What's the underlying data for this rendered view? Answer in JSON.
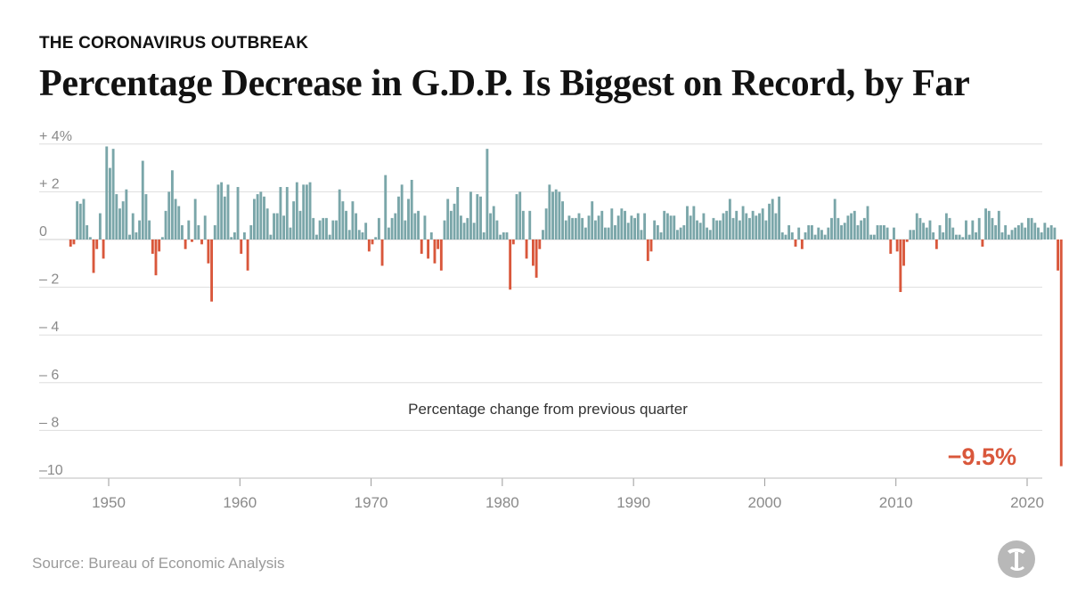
{
  "kicker": "THE CORONAVIRUS OUTBREAK",
  "title": "Percentage Decrease in G.D.P. Is Biggest on Record, by Far",
  "source": "Source: Bureau of Economic Analysis",
  "colors": {
    "positive": "#7aa6a9",
    "negative": "#d9573b",
    "grid": "#dddddd",
    "axis_text": "#8a8a8a",
    "zero_line": "#cfcfcf"
  },
  "chart_data": {
    "type": "bar",
    "title": "Percentage Decrease in G.D.P. Is Biggest on Record, by Far",
    "annotation": "Percentage change from previous quarter",
    "callout": "−9.5%",
    "ylim": [
      -10,
      4
    ],
    "y_ticks": [
      {
        "value": 4,
        "label": "+ 4%"
      },
      {
        "value": 2,
        "label": "+ 2"
      },
      {
        "value": 0,
        "label": "0"
      },
      {
        "value": -2,
        "label": "– 2"
      },
      {
        "value": -4,
        "label": "– 4"
      },
      {
        "value": -6,
        "label": "– 6"
      },
      {
        "value": -8,
        "label": "– 8"
      },
      {
        "value": -10,
        "label": "–10"
      }
    ],
    "x_ticks": [
      {
        "year": 1950,
        "label": "1950"
      },
      {
        "year": 1960,
        "label": "1960"
      },
      {
        "year": 1970,
        "label": "1970"
      },
      {
        "year": 1980,
        "label": "1980"
      },
      {
        "year": 1990,
        "label": "1990"
      },
      {
        "year": 2000,
        "label": "2000"
      },
      {
        "year": 2010,
        "label": "2010"
      },
      {
        "year": 2020,
        "label": "2020"
      }
    ],
    "start_year": 1947,
    "quarters_per_year": 4,
    "values": [
      -0.3,
      -0.2,
      1.6,
      1.5,
      1.7,
      0.6,
      0.1,
      -1.4,
      -0.4,
      1.1,
      -0.8,
      3.9,
      3.0,
      3.8,
      1.9,
      1.3,
      1.6,
      2.1,
      0.2,
      1.1,
      0.3,
      0.8,
      3.3,
      1.9,
      0.8,
      -0.6,
      -1.5,
      -0.5,
      0.1,
      1.2,
      2.0,
      2.9,
      1.7,
      1.4,
      0.6,
      -0.4,
      0.8,
      -0.1,
      1.7,
      0.6,
      -0.2,
      1.0,
      -1.0,
      -2.6,
      0.6,
      2.3,
      2.4,
      1.8,
      2.3,
      0.1,
      0.3,
      2.2,
      -0.6,
      0.3,
      -1.3,
      0.6,
      1.7,
      1.9,
      2.0,
      1.8,
      1.3,
      0.2,
      1.1,
      1.1,
      2.2,
      1.0,
      2.2,
      0.5,
      1.6,
      2.4,
      1.2,
      2.3,
      2.3,
      2.4,
      0.9,
      0.2,
      0.8,
      0.9,
      0.9,
      0.2,
      0.8,
      0.8,
      2.1,
      1.6,
      1.2,
      0.4,
      1.6,
      1.1,
      0.4,
      0.3,
      0.7,
      -0.5,
      -0.2,
      0.1,
      0.9,
      -1.1,
      2.7,
      0.5,
      0.9,
      1.1,
      1.8,
      2.3,
      0.8,
      1.7,
      2.5,
      1.1,
      1.2,
      -0.6,
      1.0,
      -0.8,
      0.3,
      -1.0,
      -0.4,
      -1.3,
      0.8,
      1.7,
      1.2,
      1.5,
      2.2,
      1.0,
      0.7,
      0.9,
      2.0,
      0.7,
      1.9,
      1.8,
      0.3,
      3.8,
      1.1,
      1.4,
      0.8,
      0.2,
      0.3,
      0.3,
      -2.1,
      -0.2,
      1.9,
      2.0,
      1.2,
      -0.8,
      1.2,
      -1.1,
      -1.6,
      -0.4,
      0.4,
      1.3,
      2.3,
      2.0,
      2.1,
      2.0,
      1.6,
      0.8,
      1.0,
      0.9,
      0.9,
      1.1,
      0.9,
      0.5,
      1.0,
      1.6,
      0.8,
      1.0,
      1.2,
      0.5,
      0.5,
      1.3,
      0.6,
      1.0,
      1.3,
      1.2,
      0.7,
      1.0,
      0.9,
      1.1,
      0.4,
      1.1,
      -0.9,
      -0.5,
      0.8,
      0.6,
      0.3,
      1.2,
      1.1,
      1.0,
      1.0,
      0.4,
      0.5,
      0.6,
      1.4,
      1.0,
      1.4,
      0.8,
      0.7,
      1.1,
      0.5,
      0.4,
      0.9,
      0.8,
      0.8,
      1.1,
      1.2,
      1.7,
      0.9,
      1.2,
      0.8,
      1.4,
      1.1,
      0.9,
      1.2,
      1.0,
      1.1,
      1.3,
      0.8,
      1.5,
      1.7,
      1.1,
      1.8,
      0.3,
      0.2,
      0.6,
      0.3,
      -0.3,
      0.5,
      -0.4,
      0.3,
      0.6,
      0.6,
      0.2,
      0.5,
      0.4,
      0.2,
      0.5,
      0.9,
      1.7,
      0.9,
      0.6,
      0.7,
      1.0,
      1.1,
      1.2,
      0.6,
      0.8,
      0.9,
      1.4,
      0.2,
      0.2,
      0.6,
      0.6,
      0.6,
      0.5,
      -0.6,
      0.5,
      -0.5,
      -2.2,
      -1.1,
      -0.1,
      0.4,
      0.4,
      1.1,
      0.9,
      0.7,
      0.5,
      0.8,
      0.3,
      -0.4,
      0.6,
      0.3,
      1.1,
      0.9,
      0.5,
      0.2,
      0.2,
      0.1,
      0.8,
      0.2,
      0.8,
      0.3,
      0.9,
      -0.3,
      1.3,
      1.2,
      0.9,
      0.6,
      1.2,
      0.3,
      0.6,
      0.2,
      0.4,
      0.5,
      0.6,
      0.7,
      0.5,
      0.9,
      0.9,
      0.7,
      0.5,
      0.3,
      0.7,
      0.5,
      0.6,
      0.5,
      -1.3,
      -9.5
    ]
  }
}
